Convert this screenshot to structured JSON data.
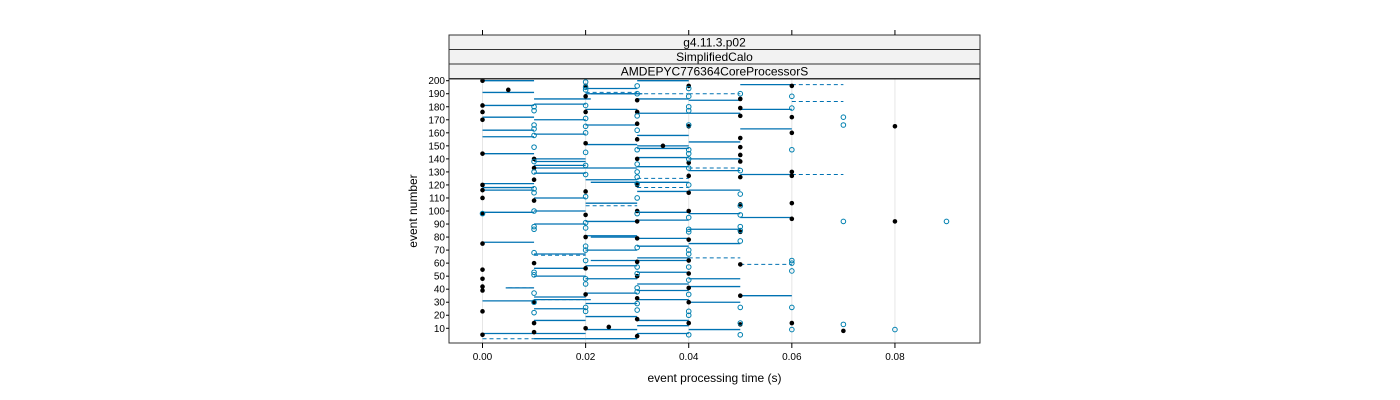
{
  "chart_data": {
    "type": "scatter",
    "strips": [
      "g4.11.3.p02",
      "SimplifiedCalo",
      "AMDEPYC776364CoreProcessorS"
    ],
    "xlabel": "event processing time (s)",
    "ylabel": "event number",
    "xlim": [
      -0.0065,
      0.0965
    ],
    "ylim": [
      -1.3,
      201.3
    ],
    "x_ticks": [
      0.0,
      0.02,
      0.04,
      0.06,
      0.08
    ],
    "x_tick_labels": [
      "0.00",
      "0.02",
      "0.04",
      "0.06",
      "0.08"
    ],
    "y_ticks": [
      10,
      20,
      30,
      40,
      50,
      60,
      70,
      80,
      90,
      100,
      110,
      120,
      130,
      140,
      150,
      160,
      170,
      180,
      190,
      200
    ],
    "y_tick_labels": [
      "10",
      "20",
      "30",
      "40",
      "50",
      "60",
      "70",
      "80",
      "90",
      "100",
      "110",
      "120",
      "130",
      "140",
      "150",
      "160",
      "170",
      "180",
      "190",
      "200"
    ],
    "grid": true,
    "colors": {
      "filled": "#000000",
      "open": "#0080b0",
      "segment": "#0072b2",
      "grid": "#e6e6e6",
      "strip_bg": "#f2f2f2"
    },
    "series": [
      {
        "name": "",
        "marker": "filled",
        "points": [
          [
            0.0,
            200
          ],
          [
            0.0,
            181
          ],
          [
            0.0,
            176
          ],
          [
            0.0,
            170
          ],
          [
            0.0,
            144
          ],
          [
            0.0,
            120
          ],
          [
            0.0,
            116
          ],
          [
            0.0,
            110
          ],
          [
            0.0,
            98
          ],
          [
            0.0,
            75
          ],
          [
            0.0,
            55
          ],
          [
            0.0,
            48
          ],
          [
            0.0,
            42
          ],
          [
            0.0,
            39
          ],
          [
            0.0,
            23
          ],
          [
            0.0,
            5
          ],
          [
            0.005,
            193
          ],
          [
            0.01,
            140
          ],
          [
            0.01,
            133
          ],
          [
            0.01,
            124
          ],
          [
            0.01,
            108
          ],
          [
            0.01,
            60
          ],
          [
            0.01,
            30
          ],
          [
            0.01,
            14
          ],
          [
            0.01,
            7
          ],
          [
            0.02,
            196
          ],
          [
            0.02,
            188
          ],
          [
            0.02,
            176
          ],
          [
            0.02,
            152
          ],
          [
            0.02,
            115
          ],
          [
            0.02,
            97
          ],
          [
            0.02,
            80
          ],
          [
            0.02,
            56
          ],
          [
            0.02,
            36
          ],
          [
            0.02,
            10
          ],
          [
            0.0245,
            11
          ],
          [
            0.03,
            185
          ],
          [
            0.03,
            176
          ],
          [
            0.03,
            167
          ],
          [
            0.03,
            155
          ],
          [
            0.03,
            140
          ],
          [
            0.03,
            120
          ],
          [
            0.03,
            100
          ],
          [
            0.03,
            92
          ],
          [
            0.03,
            79
          ],
          [
            0.03,
            61
          ],
          [
            0.03,
            50
          ],
          [
            0.03,
            33
          ],
          [
            0.03,
            17
          ],
          [
            0.03,
            4
          ],
          [
            0.035,
            150
          ],
          [
            0.04,
            196
          ],
          [
            0.04,
            165
          ],
          [
            0.04,
            137
          ],
          [
            0.04,
            127
          ],
          [
            0.04,
            114
          ],
          [
            0.04,
            100
          ],
          [
            0.04,
            78
          ],
          [
            0.04,
            62
          ],
          [
            0.04,
            52
          ],
          [
            0.04,
            41
          ],
          [
            0.04,
            30
          ],
          [
            0.04,
            14
          ],
          [
            0.05,
            186
          ],
          [
            0.05,
            179
          ],
          [
            0.05,
            173
          ],
          [
            0.05,
            156
          ],
          [
            0.05,
            149
          ],
          [
            0.05,
            143
          ],
          [
            0.05,
            138
          ],
          [
            0.05,
            126
          ],
          [
            0.05,
            105
          ],
          [
            0.05,
            84
          ],
          [
            0.05,
            59
          ],
          [
            0.05,
            35
          ],
          [
            0.05,
            13
          ],
          [
            0.06,
            196
          ],
          [
            0.06,
            172
          ],
          [
            0.06,
            160
          ],
          [
            0.06,
            130
          ],
          [
            0.06,
            127
          ],
          [
            0.06,
            106
          ],
          [
            0.06,
            94
          ],
          [
            0.06,
            14
          ],
          [
            0.07,
            8
          ],
          [
            0.08,
            165
          ],
          [
            0.08,
            92
          ]
        ]
      },
      {
        "name": "",
        "marker": "open",
        "points": [
          [
            0.0,
            98
          ],
          [
            0.01,
            180
          ],
          [
            0.01,
            177
          ],
          [
            0.01,
            166
          ],
          [
            0.01,
            163
          ],
          [
            0.01,
            158
          ],
          [
            0.01,
            149
          ],
          [
            0.01,
            138
          ],
          [
            0.01,
            130
          ],
          [
            0.01,
            117
          ],
          [
            0.01,
            114
          ],
          [
            0.01,
            100
          ],
          [
            0.01,
            88
          ],
          [
            0.01,
            86
          ],
          [
            0.01,
            68
          ],
          [
            0.01,
            53
          ],
          [
            0.01,
            51
          ],
          [
            0.01,
            37
          ],
          [
            0.01,
            30
          ],
          [
            0.01,
            22
          ],
          [
            0.02,
            199
          ],
          [
            0.02,
            195
          ],
          [
            0.02,
            193
          ],
          [
            0.02,
            181
          ],
          [
            0.02,
            171
          ],
          [
            0.02,
            165
          ],
          [
            0.02,
            160
          ],
          [
            0.02,
            145
          ],
          [
            0.02,
            135
          ],
          [
            0.02,
            128
          ],
          [
            0.02,
            111
          ],
          [
            0.02,
            91
          ],
          [
            0.02,
            87
          ],
          [
            0.02,
            73
          ],
          [
            0.02,
            70
          ],
          [
            0.02,
            62
          ],
          [
            0.02,
            48
          ],
          [
            0.02,
            44
          ],
          [
            0.02,
            26
          ],
          [
            0.02,
            23
          ],
          [
            0.03,
            196
          ],
          [
            0.03,
            190
          ],
          [
            0.03,
            173
          ],
          [
            0.03,
            162
          ],
          [
            0.03,
            147
          ],
          [
            0.03,
            136
          ],
          [
            0.03,
            130
          ],
          [
            0.03,
            126
          ],
          [
            0.03,
            121
          ],
          [
            0.03,
            110
          ],
          [
            0.03,
            98
          ],
          [
            0.03,
            72
          ],
          [
            0.03,
            57
          ],
          [
            0.03,
            52
          ],
          [
            0.03,
            41
          ],
          [
            0.03,
            38
          ],
          [
            0.03,
            29
          ],
          [
            0.03,
            24
          ],
          [
            0.04,
            194
          ],
          [
            0.04,
            188
          ],
          [
            0.04,
            180
          ],
          [
            0.04,
            177
          ],
          [
            0.04,
            166
          ],
          [
            0.04,
            147
          ],
          [
            0.04,
            144
          ],
          [
            0.04,
            140
          ],
          [
            0.04,
            133
          ],
          [
            0.04,
            120
          ],
          [
            0.04,
            95
          ],
          [
            0.04,
            86
          ],
          [
            0.04,
            84
          ],
          [
            0.04,
            70
          ],
          [
            0.04,
            67
          ],
          [
            0.04,
            57
          ],
          [
            0.04,
            47
          ],
          [
            0.04,
            36
          ],
          [
            0.04,
            23
          ],
          [
            0.04,
            20
          ],
          [
            0.04,
            5
          ],
          [
            0.05,
            190
          ],
          [
            0.05,
            131
          ],
          [
            0.05,
            113
          ],
          [
            0.05,
            104
          ],
          [
            0.05,
            97
          ],
          [
            0.05,
            88
          ],
          [
            0.05,
            85
          ],
          [
            0.05,
            77
          ],
          [
            0.05,
            26
          ],
          [
            0.05,
            14
          ],
          [
            0.05,
            5
          ],
          [
            0.06,
            188
          ],
          [
            0.06,
            179
          ],
          [
            0.06,
            147
          ],
          [
            0.06,
            62
          ],
          [
            0.06,
            60
          ],
          [
            0.06,
            54
          ],
          [
            0.06,
            26
          ],
          [
            0.06,
            9
          ],
          [
            0.07,
            172
          ],
          [
            0.07,
            166
          ],
          [
            0.07,
            92
          ],
          [
            0.07,
            13
          ],
          [
            0.08,
            9
          ],
          [
            0.09,
            92
          ]
        ]
      }
    ],
    "segments_solid": [
      [
        0.0,
        0.01,
        200
      ],
      [
        0.0,
        0.01,
        191
      ],
      [
        0.0,
        0.01,
        181
      ],
      [
        0.0,
        0.01,
        172
      ],
      [
        0.0,
        0.01,
        162
      ],
      [
        0.0,
        0.01,
        157
      ],
      [
        0.0,
        0.01,
        144
      ],
      [
        0.0,
        0.01,
        121
      ],
      [
        0.0,
        0.01,
        118
      ],
      [
        0.0,
        0.01,
        116
      ],
      [
        0.0,
        0.01,
        99
      ],
      [
        0.0,
        0.01,
        76
      ],
      [
        0.0,
        0.01,
        31
      ],
      [
        0.0,
        0.01,
        6
      ],
      [
        0.0045,
        0.01,
        41
      ],
      [
        0.01,
        0.02,
        182
      ],
      [
        0.01,
        0.02,
        170
      ],
      [
        0.01,
        0.02,
        159
      ],
      [
        0.01,
        0.02,
        140
      ],
      [
        0.01,
        0.02,
        138
      ],
      [
        0.01,
        0.02,
        135
      ],
      [
        0.01,
        0.02,
        133
      ],
      [
        0.01,
        0.02,
        129
      ],
      [
        0.01,
        0.02,
        110
      ],
      [
        0.01,
        0.02,
        100
      ],
      [
        0.01,
        0.02,
        90
      ],
      [
        0.01,
        0.02,
        67
      ],
      [
        0.01,
        0.02,
        56
      ],
      [
        0.01,
        0.02,
        50
      ],
      [
        0.01,
        0.02,
        34
      ],
      [
        0.01,
        0.02,
        25
      ],
      [
        0.01,
        0.02,
        16
      ],
      [
        0.01,
        0.02,
        6
      ],
      [
        0.01,
        0.02,
        2
      ],
      [
        0.01,
        0.021,
        186
      ],
      [
        0.01,
        0.021,
        32
      ],
      [
        0.02,
        0.03,
        194
      ],
      [
        0.02,
        0.03,
        190
      ],
      [
        0.02,
        0.03,
        178
      ],
      [
        0.02,
        0.03,
        166
      ],
      [
        0.02,
        0.03,
        151
      ],
      [
        0.02,
        0.03,
        133
      ],
      [
        0.02,
        0.03,
        124
      ],
      [
        0.02,
        0.03,
        106
      ],
      [
        0.02,
        0.03,
        92
      ],
      [
        0.02,
        0.03,
        81
      ],
      [
        0.02,
        0.03,
        70
      ],
      [
        0.02,
        0.03,
        58
      ],
      [
        0.02,
        0.03,
        48
      ],
      [
        0.02,
        0.03,
        37
      ],
      [
        0.02,
        0.03,
        29
      ],
      [
        0.02,
        0.03,
        19
      ],
      [
        0.02,
        0.03,
        9
      ],
      [
        0.02,
        0.03,
        2
      ],
      [
        0.021,
        0.031,
        190
      ],
      [
        0.021,
        0.03,
        122
      ],
      [
        0.021,
        0.03,
        80
      ],
      [
        0.021,
        0.03,
        62
      ],
      [
        0.03,
        0.04,
        200
      ],
      [
        0.03,
        0.04,
        186
      ],
      [
        0.03,
        0.04,
        175
      ],
      [
        0.03,
        0.04,
        158
      ],
      [
        0.03,
        0.04,
        150
      ],
      [
        0.03,
        0.04,
        148
      ],
      [
        0.03,
        0.04,
        141
      ],
      [
        0.03,
        0.04,
        134
      ],
      [
        0.03,
        0.04,
        122
      ],
      [
        0.03,
        0.04,
        115
      ],
      [
        0.03,
        0.04,
        99
      ],
      [
        0.03,
        0.04,
        93
      ],
      [
        0.03,
        0.04,
        79
      ],
      [
        0.03,
        0.04,
        73
      ],
      [
        0.03,
        0.04,
        64
      ],
      [
        0.03,
        0.04,
        62
      ],
      [
        0.03,
        0.04,
        53
      ],
      [
        0.03,
        0.04,
        44
      ],
      [
        0.03,
        0.04,
        39
      ],
      [
        0.03,
        0.04,
        32
      ],
      [
        0.03,
        0.04,
        16
      ],
      [
        0.03,
        0.04,
        12
      ],
      [
        0.03,
        0.04,
        6
      ],
      [
        0.04,
        0.05,
        185
      ],
      [
        0.04,
        0.05,
        175
      ],
      [
        0.04,
        0.05,
        153
      ],
      [
        0.04,
        0.05,
        140
      ],
      [
        0.04,
        0.05,
        131
      ],
      [
        0.04,
        0.05,
        116
      ],
      [
        0.04,
        0.05,
        98
      ],
      [
        0.04,
        0.05,
        86
      ],
      [
        0.04,
        0.05,
        75
      ],
      [
        0.04,
        0.05,
        48
      ],
      [
        0.04,
        0.05,
        42
      ],
      [
        0.04,
        0.05,
        30
      ],
      [
        0.04,
        0.05,
        9
      ],
      [
        0.05,
        0.06,
        197
      ],
      [
        0.05,
        0.06,
        178
      ],
      [
        0.05,
        0.06,
        163
      ],
      [
        0.05,
        0.06,
        128
      ],
      [
        0.05,
        0.06,
        95
      ],
      [
        0.05,
        0.06,
        35
      ]
    ],
    "segments_dashed": [
      [
        0.0,
        0.01,
        2
      ],
      [
        0.005,
        0.01,
        41
      ],
      [
        0.01,
        0.02,
        66
      ],
      [
        0.01,
        0.02,
        32
      ],
      [
        0.02,
        0.03,
        191
      ],
      [
        0.02,
        0.03,
        104
      ],
      [
        0.03,
        0.04,
        190
      ],
      [
        0.03,
        0.04,
        125
      ],
      [
        0.03,
        0.04,
        118
      ],
      [
        0.04,
        0.05,
        190
      ],
      [
        0.04,
        0.05,
        133
      ],
      [
        0.04,
        0.05,
        64
      ],
      [
        0.05,
        0.06,
        59
      ],
      [
        0.06,
        0.07,
        197
      ],
      [
        0.06,
        0.07,
        184
      ],
      [
        0.06,
        0.07,
        128
      ]
    ]
  }
}
